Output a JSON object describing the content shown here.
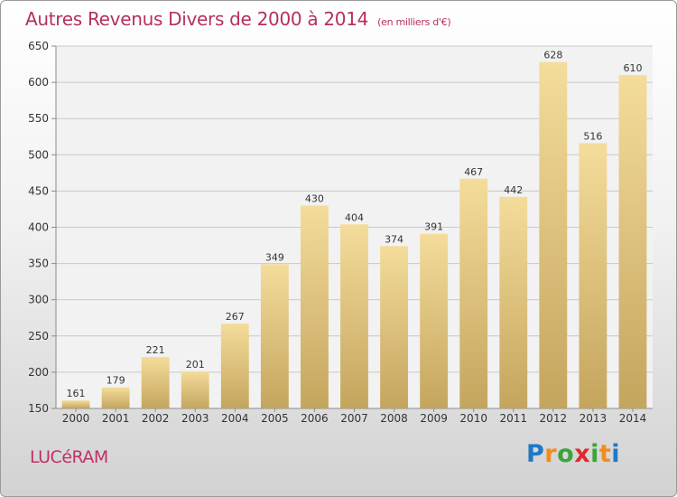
{
  "chart_data": {
    "type": "bar",
    "title": "Autres Revenus Divers de 2000 à 2014",
    "subtitle": "(en milliers d'€)",
    "categories": [
      "2000",
      "2001",
      "2002",
      "2003",
      "2004",
      "2005",
      "2006",
      "2007",
      "2008",
      "2009",
      "2010",
      "2011",
      "2012",
      "2013",
      "2014"
    ],
    "values": [
      161,
      179,
      221,
      201,
      267,
      349,
      430,
      404,
      374,
      391,
      467,
      442,
      628,
      516,
      610
    ],
    "ylim": [
      150,
      650
    ],
    "yticks": [
      150,
      200,
      250,
      300,
      350,
      400,
      450,
      500,
      550,
      600,
      650
    ],
    "grid": true,
    "colors": {
      "bar_top": "#f4dc9a",
      "bar_bottom": "#c4a55e",
      "grid": "#c8c8c8",
      "axis": "#8c8c8c"
    }
  },
  "location": "LUCéRAM",
  "brand": {
    "letters": [
      "P",
      "r",
      "o",
      "x",
      "i",
      "t",
      "i"
    ],
    "colors": [
      "#1f78c8",
      "#f28c1e",
      "#3aa53a",
      "#e2282d",
      "#3aa53a",
      "#f28c1e",
      "#1f78c8"
    ]
  }
}
